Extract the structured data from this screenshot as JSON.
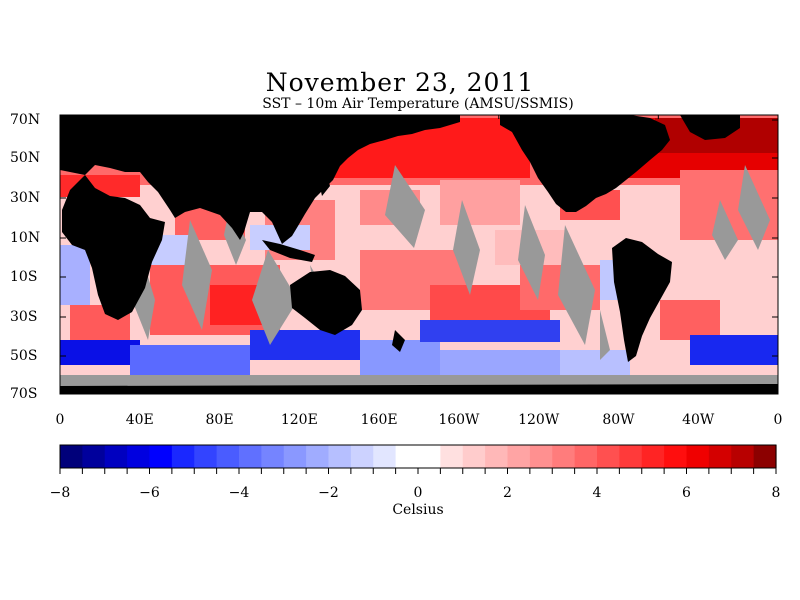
{
  "title": "November 23, 2011",
  "subtitle": "SST – 10m Air Temperature (AMSU/SSMIS)",
  "colors": {
    "land": "#000000",
    "missing": "#999999",
    "ocean_warm": "#ff0000",
    "ocean_cool": "#0000ff"
  },
  "map": {
    "lat_labels": [
      "70N",
      "50N",
      "30N",
      "10N",
      "10S",
      "30S",
      "50S",
      "70S"
    ],
    "lon_labels": [
      "0",
      "40E",
      "80E",
      "120E",
      "160E",
      "160W",
      "120W",
      "80W",
      "40W",
      "0"
    ]
  },
  "colorbar": {
    "min": -8,
    "max": 8,
    "step": 0.5,
    "tick_labels": [
      "−8",
      "−6",
      "−4",
      "−2",
      "0",
      "2",
      "4",
      "6",
      "8"
    ],
    "unit": "Celsius",
    "stops": [
      "#00007a",
      "#00009c",
      "#0000c0",
      "#0000e0",
      "#0000ff",
      "#1a28ff",
      "#3344ff",
      "#4a5cff",
      "#6070ff",
      "#7584ff",
      "#8a98ff",
      "#a0acff",
      "#b6bfff",
      "#ccd2ff",
      "#e2e6ff",
      "#ffffff",
      "#ffffff",
      "#ffe0e0",
      "#ffcccc",
      "#ffb8b8",
      "#ffa4a4",
      "#ff9090",
      "#ff7c7c",
      "#ff6666",
      "#ff5050",
      "#ff3a3a",
      "#ff2424",
      "#ff0e0e",
      "#f00000",
      "#d40000",
      "#b80000",
      "#8c0000"
    ]
  }
}
